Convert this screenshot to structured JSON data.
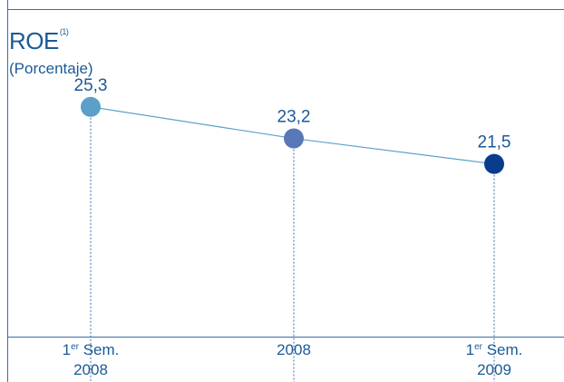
{
  "chart_data": {
    "type": "line",
    "title": "ROE",
    "title_footnote": "(1)",
    "subtitle": "(Porcentaje)",
    "categories": [
      {
        "line1_main": "1",
        "line1_sup": "er",
        "line1_rest": " Sem.",
        "line2": "2008"
      },
      {
        "line1_main": "2008",
        "line1_sup": "",
        "line1_rest": "",
        "line2": ""
      },
      {
        "line1_main": "1",
        "line1_sup": "er",
        "line1_rest": " Sem.",
        "line2": "2009"
      }
    ],
    "values": [
      25.3,
      23.2,
      21.5
    ],
    "value_labels": [
      "25,3",
      "23,2",
      "21,5"
    ],
    "ylim": [
      10,
      30
    ],
    "grid": false,
    "colors": {
      "frame": "#3a6ea5",
      "line": "#5aa0c8",
      "text": "#1a5a99",
      "points": [
        "#5aa0c8",
        "#5a78b8",
        "#0a3c8c"
      ]
    }
  }
}
